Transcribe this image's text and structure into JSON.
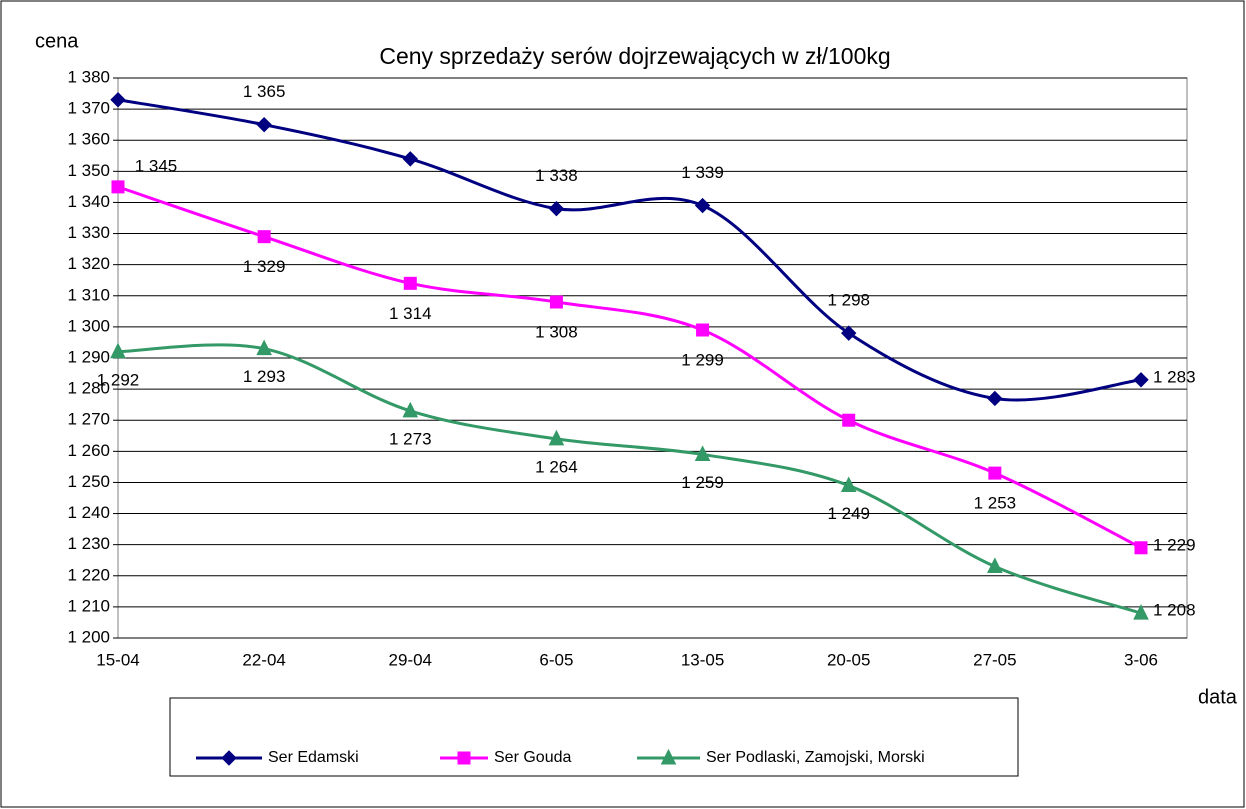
{
  "chart_data": {
    "type": "line",
    "title": "Ceny sprzedaży serów dojrzewających w zł/100kg",
    "y_label": "cena",
    "x_label": "data",
    "categories": [
      "15-04",
      "22-04",
      "29-04",
      "6-05",
      "13-05",
      "20-05",
      "27-05",
      "3-06"
    ],
    "series": [
      {
        "name": "Ser Edamski",
        "color": "#000080",
        "marker": "diamond",
        "values": [
          1373,
          1365,
          1354,
          1338,
          1339,
          1298,
          1277,
          1283
        ],
        "value_labels": [
          null,
          "1 365",
          null,
          "1 338",
          "1 339",
          "1 298",
          null,
          "1 283"
        ]
      },
      {
        "name": "Ser Gouda",
        "color": "#ff00ff",
        "marker": "square",
        "values": [
          1345,
          1329,
          1314,
          1308,
          1299,
          1270,
          1253,
          1229
        ],
        "value_labels": [
          "1 345",
          "1 329",
          "1 314",
          "1 308",
          "1 299",
          null,
          "1 253",
          "1 229"
        ]
      },
      {
        "name": "Ser Podlaski, Zamojski, Morski",
        "color": "#339966",
        "marker": "triangle",
        "values": [
          1292,
          1293,
          1273,
          1264,
          1259,
          1249,
          1223,
          1208
        ],
        "value_labels": [
          "1 292",
          "1 293",
          "1 273",
          "1 264",
          "1 259",
          "1 249",
          null,
          "1 208"
        ]
      }
    ],
    "ylim": [
      1200,
      1380
    ],
    "yticks": [
      {
        "value": 1200,
        "label": "1 200"
      },
      {
        "value": 1210,
        "label": "1 210"
      },
      {
        "value": 1220,
        "label": "1 220"
      },
      {
        "value": 1230,
        "label": "1 230"
      },
      {
        "value": 1240,
        "label": "1 240"
      },
      {
        "value": 1250,
        "label": "1 250"
      },
      {
        "value": 1260,
        "label": "1 260"
      },
      {
        "value": 1270,
        "label": "1 270"
      },
      {
        "value": 1280,
        "label": "1 280"
      },
      {
        "value": 1290,
        "label": "1 290"
      },
      {
        "value": 1300,
        "label": "1 300"
      },
      {
        "value": 1310,
        "label": "1 310"
      },
      {
        "value": 1320,
        "label": "1 320"
      },
      {
        "value": 1330,
        "label": "1 330"
      },
      {
        "value": 1340,
        "label": "1 340"
      },
      {
        "value": 1350,
        "label": "1 350"
      },
      {
        "value": 1360,
        "label": "1 360"
      },
      {
        "value": 1370,
        "label": "1 370"
      },
      {
        "value": 1380,
        "label": "1 380"
      }
    ],
    "grid": true,
    "legend": "bottom"
  }
}
